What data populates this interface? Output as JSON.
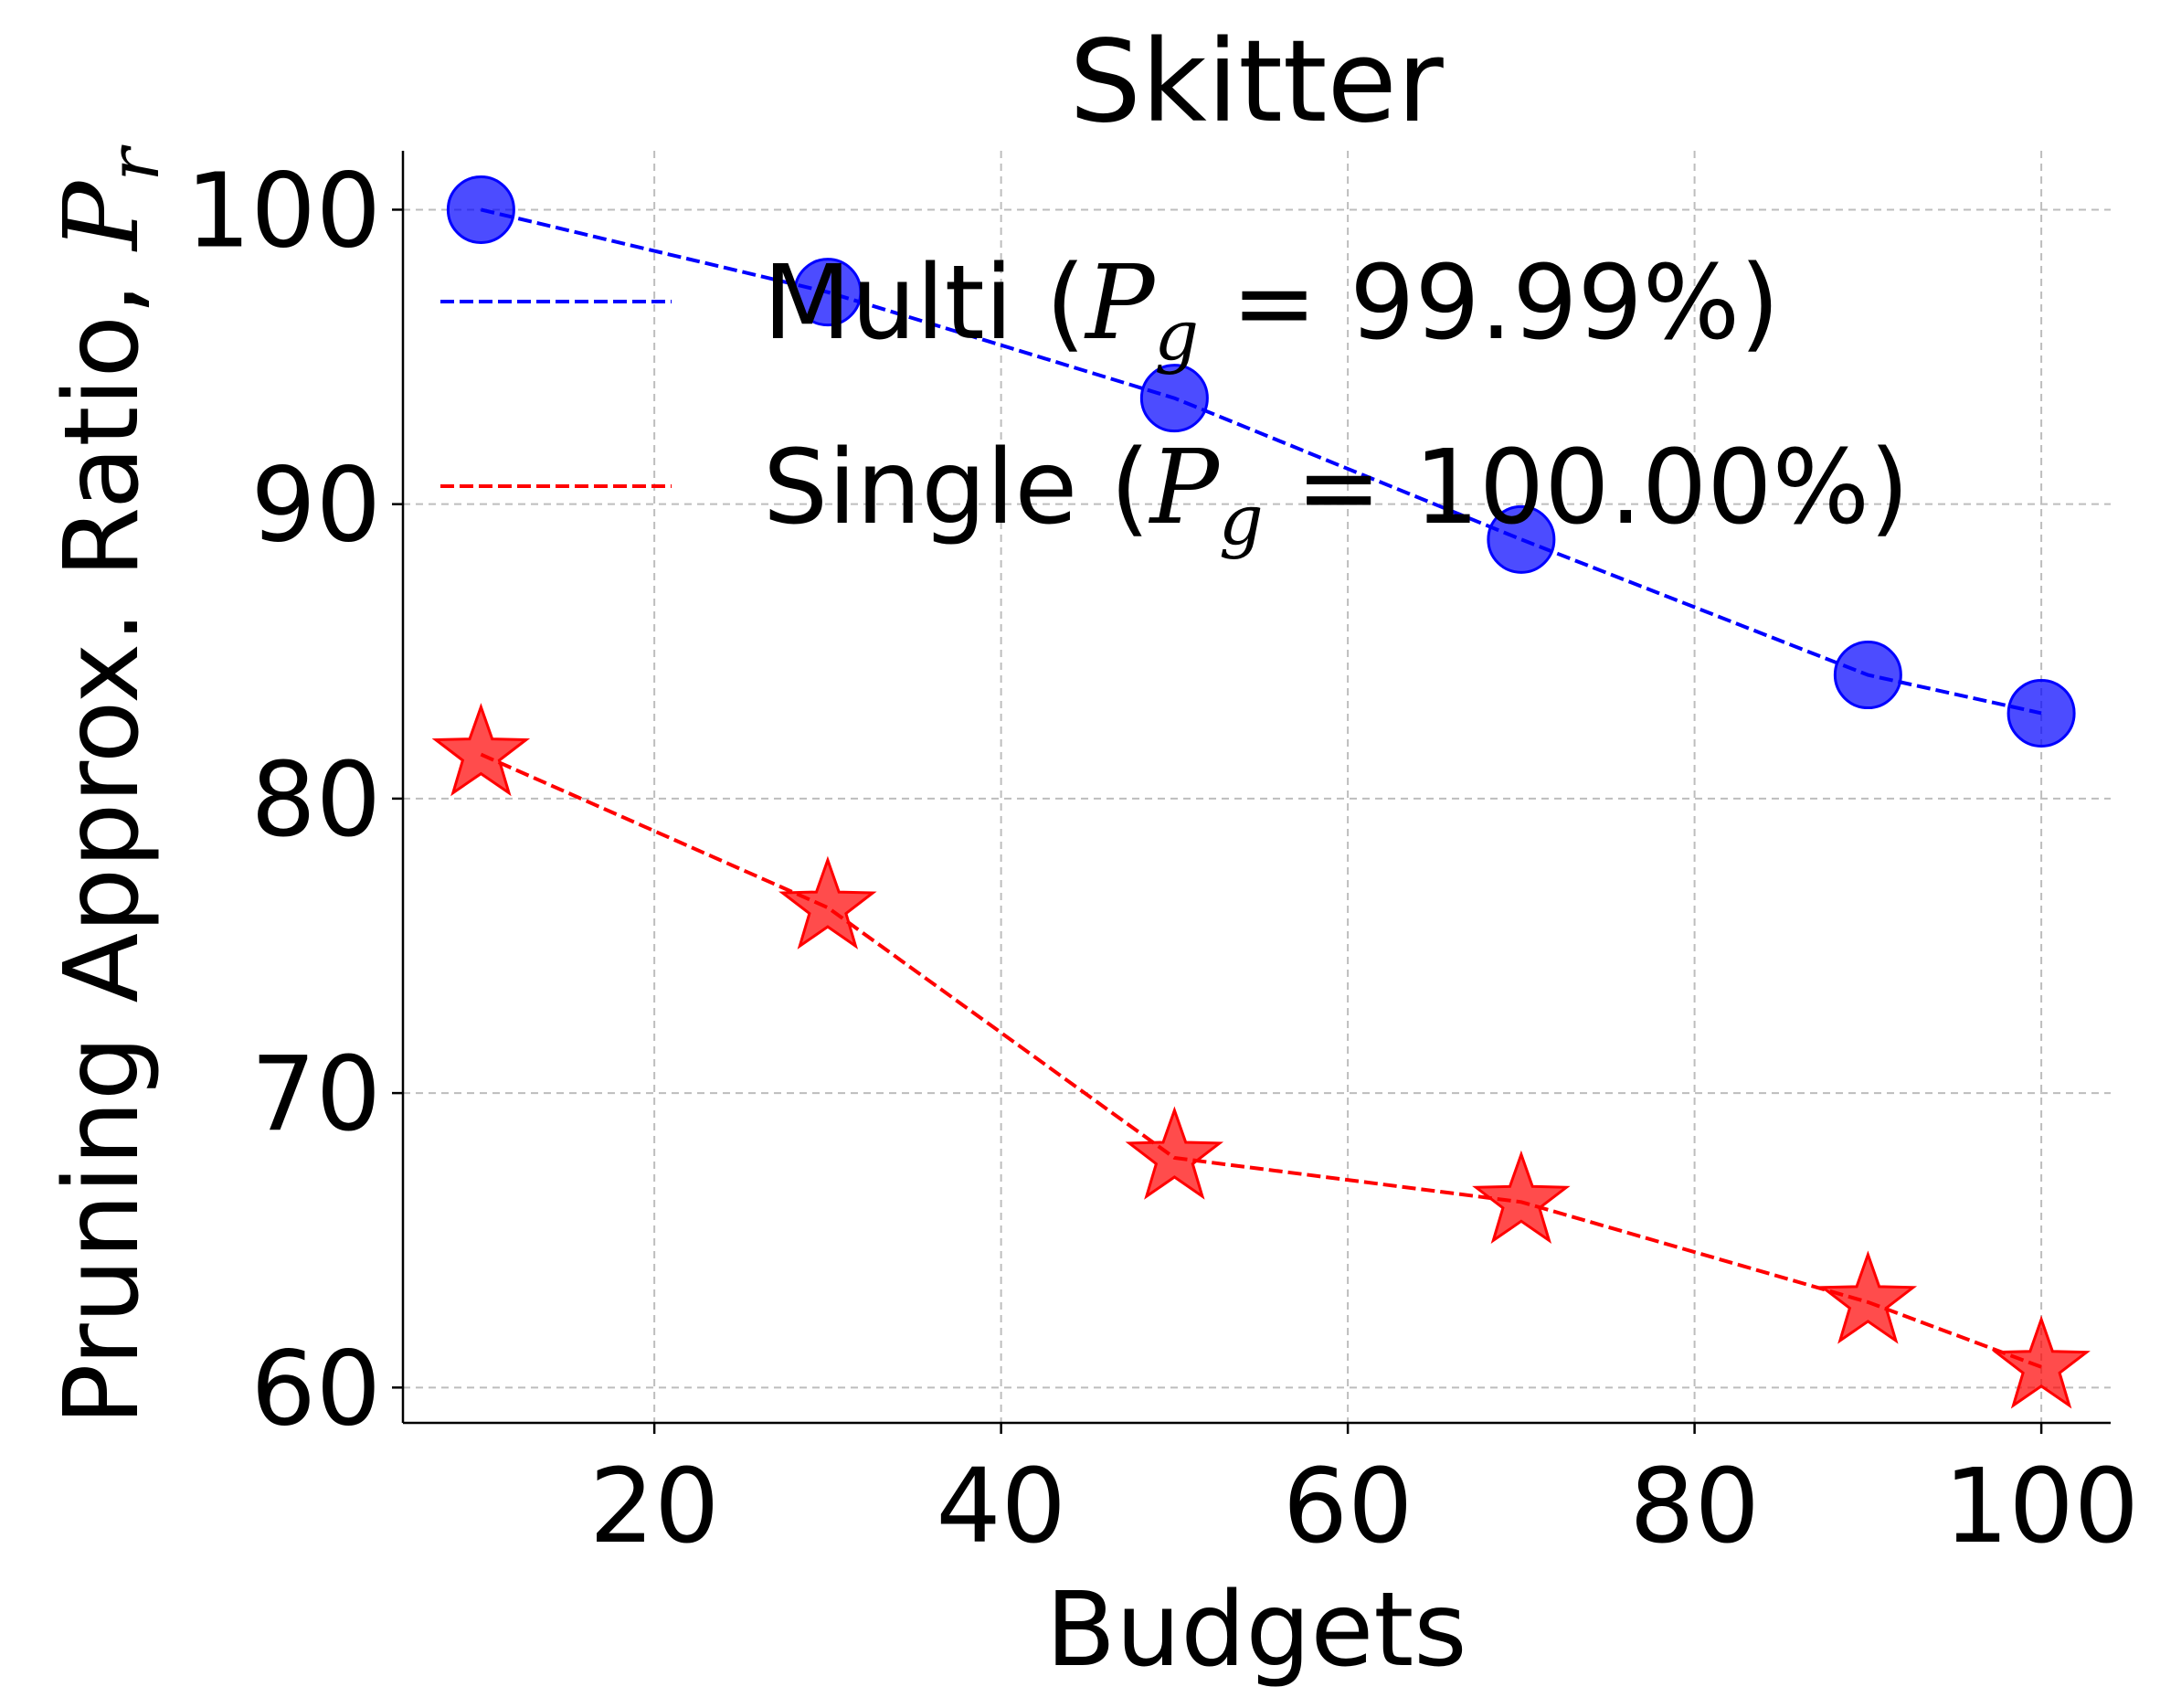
{
  "chart_data": {
    "type": "line",
    "title": "Skitter",
    "xlabel": "Budgets",
    "ylabel": "Pruning Approx. Ratio, ",
    "ylabel_symbol": "P",
    "ylabel_sub": "r",
    "xlim": [
      5.5,
      104
    ],
    "ylim": [
      58.8,
      102
    ],
    "xticks": [
      20,
      40,
      60,
      80,
      100
    ],
    "yticks": [
      60,
      70,
      80,
      90,
      100
    ],
    "grid": true,
    "legend_position": "top-right",
    "x": [
      10,
      30,
      50,
      70,
      90,
      100
    ],
    "series": [
      {
        "name": "Multi",
        "legend_prefix": "Multi (",
        "legend_symbol": "P",
        "legend_sub": "g",
        "legend_value": " = 99.99%)",
        "color": "#0000ff",
        "marker": "circle",
        "values": [
          100.0,
          97.2,
          93.6,
          88.8,
          84.2,
          82.9
        ]
      },
      {
        "name": "Single",
        "legend_prefix": "Single (",
        "legend_symbol": "P",
        "legend_sub": "g",
        "legend_value": " = 100.00%)",
        "color": "#ff0000",
        "marker": "star",
        "values": [
          81.5,
          76.3,
          67.8,
          66.3,
          62.9,
          60.7
        ]
      }
    ]
  }
}
